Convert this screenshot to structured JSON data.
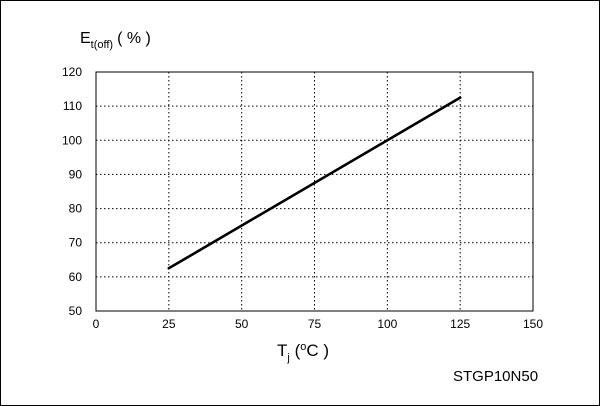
{
  "chart_data": {
    "type": "line",
    "title": "",
    "ylabel": {
      "main": "E",
      "sub": "t(off)",
      "unit": "( % )"
    },
    "xlabel": {
      "main": "T",
      "sub": "j",
      "unit_open": " (",
      "unit_sup": "o",
      "unit_close": "C )"
    },
    "xlim": [
      0,
      150
    ],
    "ylim": [
      50,
      120
    ],
    "xticks": [
      "0",
      "25",
      "50",
      "75",
      "100",
      "125",
      "150"
    ],
    "yticks": [
      "50",
      "60",
      "70",
      "80",
      "90",
      "100",
      "110",
      "120"
    ],
    "grid": "dotted",
    "series": [
      {
        "x": [
          25,
          125
        ],
        "y": [
          62.5,
          112.5
        ]
      }
    ],
    "annotation": "STGP10N50",
    "line_color": "#000000"
  }
}
